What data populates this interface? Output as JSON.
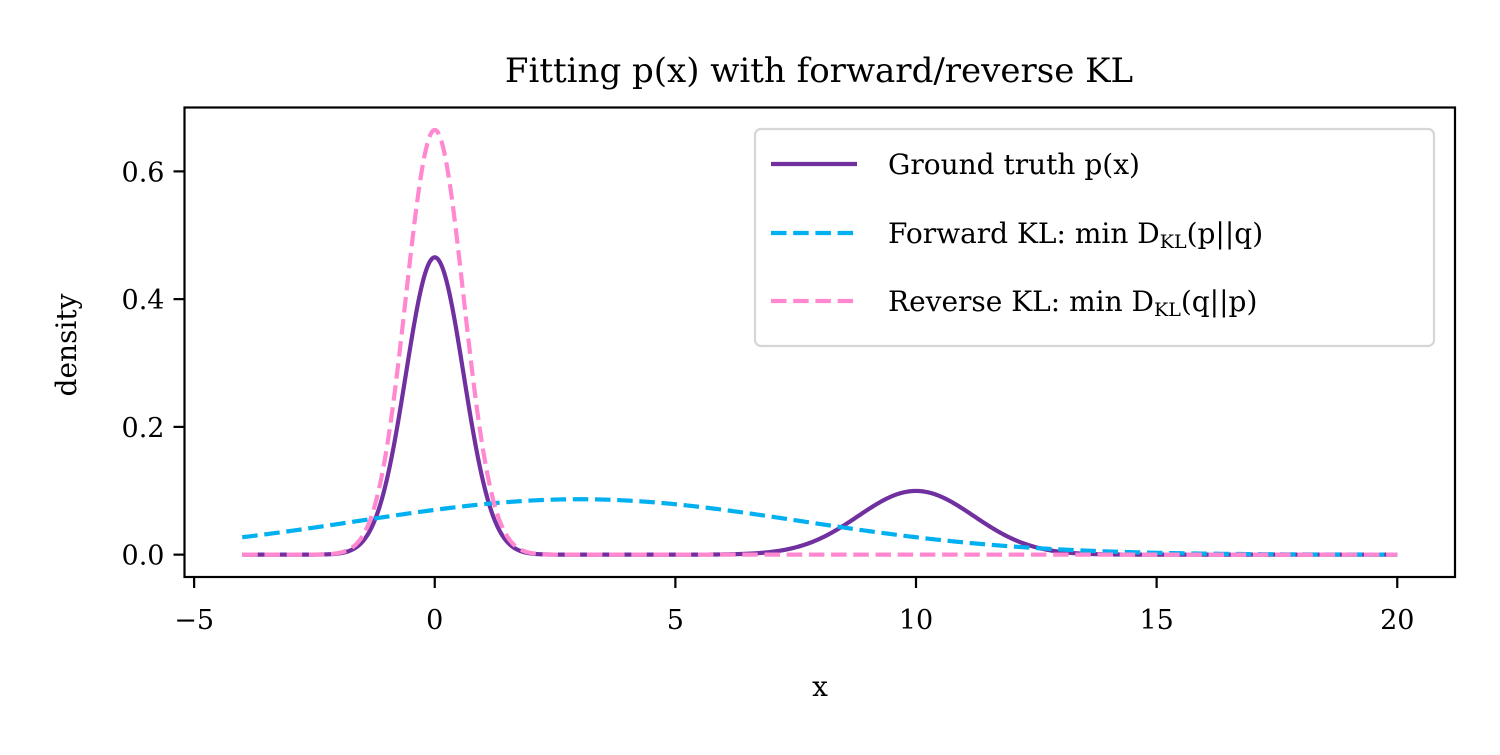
{
  "chart_data": {
    "type": "line",
    "title": "Fitting p(x) with forward/reverse KL",
    "xlabel": "x",
    "ylabel": "density",
    "xlim": [
      -5.2,
      21.2
    ],
    "ylim": [
      -0.035,
      0.7
    ],
    "xticks": [
      -5,
      0,
      5,
      10,
      15,
      20
    ],
    "xtick_labels": [
      "−5",
      "0",
      "5",
      "10",
      "15",
      "20"
    ],
    "yticks": [
      0.0,
      0.2,
      0.4,
      0.6
    ],
    "ytick_labels": [
      "0.0",
      "0.2",
      "0.4",
      "0.6"
    ],
    "grid": false,
    "legend_position": "top-right",
    "x_range": [
      -4,
      20
    ],
    "series": [
      {
        "name": "Ground truth p(x)",
        "legend_main": "Ground truth p(x)",
        "legend_sub": "",
        "legend_tail": "",
        "style": "solid",
        "color": "#7030A0",
        "components": [
          {
            "weight": 0.7,
            "mean": 0,
            "std": 0.6
          },
          {
            "weight": 0.3,
            "mean": 10,
            "std": 1.2
          }
        ]
      },
      {
        "name": "Forward KL: min DKL(p||q)",
        "legend_main": "Forward KL: min D",
        "legend_sub": "KL",
        "legend_tail": "(p||q)",
        "style": "dashed",
        "color": "#00B0F0",
        "components": [
          {
            "weight": 1.0,
            "mean": 3.0,
            "std": 4.6
          }
        ]
      },
      {
        "name": "Reverse KL: min DKL(q||p)",
        "legend_main": "Reverse KL: min D",
        "legend_sub": "KL",
        "legend_tail": "(q||p)",
        "style": "dashed",
        "color": "#FF88D0",
        "components": [
          {
            "weight": 1.0,
            "mean": 0,
            "std": 0.6
          }
        ]
      }
    ],
    "series_draw_order": [
      0,
      1,
      2
    ]
  }
}
